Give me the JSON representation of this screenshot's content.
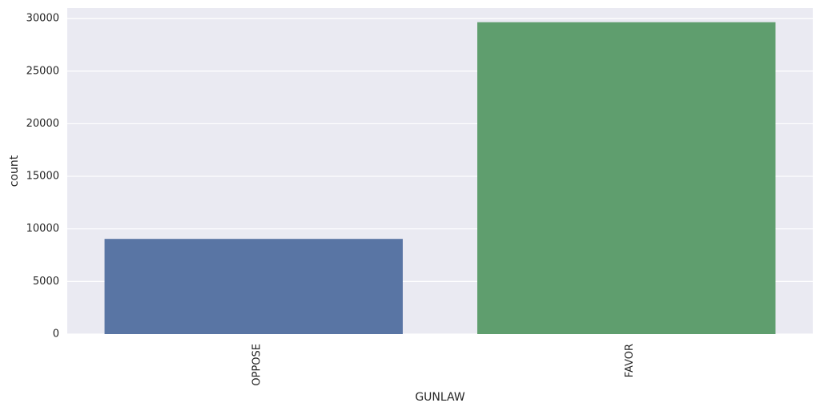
{
  "chart_data": {
    "type": "bar",
    "title": "",
    "xlabel": "GUNLAW",
    "ylabel": "count",
    "categories": [
      "OPPOSE",
      "FAVOR"
    ],
    "values": [
      9050,
      29650
    ],
    "colors": [
      "#5975a4",
      "#5f9e6e"
    ],
    "ylim": [
      0,
      31000
    ],
    "yticks": [
      0,
      5000,
      10000,
      15000,
      20000,
      25000,
      30000
    ],
    "ytick_labels": [
      "0",
      "5000",
      "10000",
      "15000",
      "20000",
      "25000",
      "30000"
    ],
    "x_tick_rotation": "vertical",
    "grid": "horizontal",
    "background": "#eaeaf2",
    "legend": "none"
  }
}
